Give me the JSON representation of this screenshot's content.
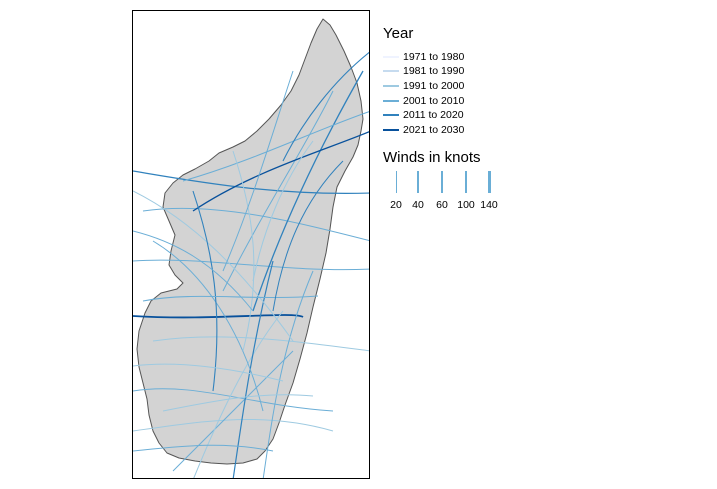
{
  "map": {
    "land_color": "#d3d3d3",
    "coast_color": "#555555"
  },
  "legend_year": {
    "title": "Year",
    "items": [
      {
        "label": "1971 to 1980",
        "color": "#eff3ff"
      },
      {
        "label": "1981 to 1990",
        "color": "#c6dbef"
      },
      {
        "label": "1991 to 2000",
        "color": "#9ecae1"
      },
      {
        "label": "2001 to 2010",
        "color": "#6baed6"
      },
      {
        "label": "2011 to 2020",
        "color": "#3182bd"
      },
      {
        "label": "2021 to 2030",
        "color": "#08519c"
      }
    ]
  },
  "legend_winds": {
    "title": "Winds in knots",
    "items": [
      {
        "label": "20",
        "value": 20
      },
      {
        "label": "40",
        "value": 40
      },
      {
        "label": "60",
        "value": 60
      },
      {
        "label": "100",
        "value": 100
      },
      {
        "label": "140",
        "value": 140
      }
    ]
  }
}
